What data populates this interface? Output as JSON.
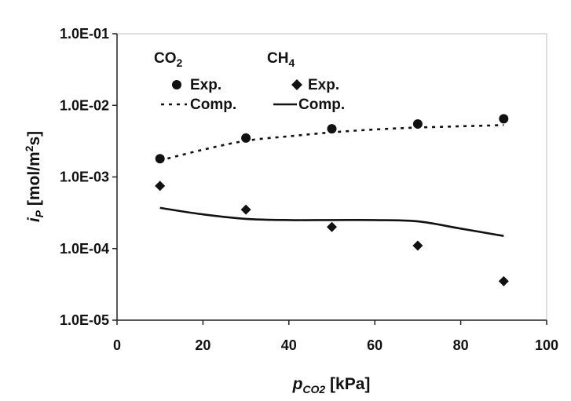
{
  "chart_data": {
    "type": "scatter",
    "xlabel": {
      "main": "p",
      "sub": "CO2",
      "unit": "[kPa]"
    },
    "ylabel": {
      "main": "i",
      "sub": "P",
      "unit_pre": "[mol/m",
      "unit_sup": "2",
      "unit_post": "s]"
    },
    "xlim": [
      0,
      100
    ],
    "ylim": [
      1e-05,
      0.1
    ],
    "yscale": "log",
    "grid": false,
    "legend_position": "top-left",
    "x_ticks": [
      0,
      20,
      40,
      60,
      80,
      100
    ],
    "x_tick_labels": [
      "0",
      "20",
      "40",
      "60",
      "80",
      "100"
    ],
    "y_ticks": [
      1e-05,
      0.0001,
      0.001,
      0.01,
      0.1
    ],
    "y_tick_labels": [
      "1.0E-05",
      "1.0E-04",
      "1.0E-03",
      "1.0E-02",
      "1.0E-01"
    ],
    "legend_groups": [
      {
        "main": "CO",
        "sub": "2",
        "exp": "Exp.",
        "comp": "Comp."
      },
      {
        "main": "CH",
        "sub": "4",
        "exp": "Exp.",
        "comp": "Comp."
      }
    ],
    "series": [
      {
        "gas": "CO2",
        "kind": "Exp.",
        "marker": "circle",
        "x": [
          10,
          30,
          50,
          70,
          90
        ],
        "y": [
          0.0018,
          0.0035,
          0.0047,
          0.0055,
          0.0065
        ]
      },
      {
        "gas": "CO2",
        "kind": "Comp.",
        "line": "dotted",
        "x": [
          10,
          20,
          30,
          40,
          50,
          60,
          70,
          80,
          90
        ],
        "y": [
          0.0017,
          0.0024,
          0.0032,
          0.0037,
          0.0042,
          0.0046,
          0.0049,
          0.0051,
          0.0053
        ]
      },
      {
        "gas": "CH4",
        "kind": "Exp.",
        "marker": "diamond",
        "x": [
          10,
          30,
          50,
          70,
          90
        ],
        "y": [
          0.00075,
          0.00035,
          0.0002,
          0.00011,
          3.5e-05
        ]
      },
      {
        "gas": "CH4",
        "kind": "Comp.",
        "line": "solid",
        "x": [
          10,
          20,
          30,
          40,
          50,
          60,
          70,
          80,
          90
        ],
        "y": [
          0.00037,
          0.0003,
          0.00026,
          0.00025,
          0.00025,
          0.00025,
          0.00024,
          0.00019,
          0.00015
        ]
      }
    ],
    "colors": {
      "ink": "#111111",
      "background": "#ffffff"
    }
  }
}
